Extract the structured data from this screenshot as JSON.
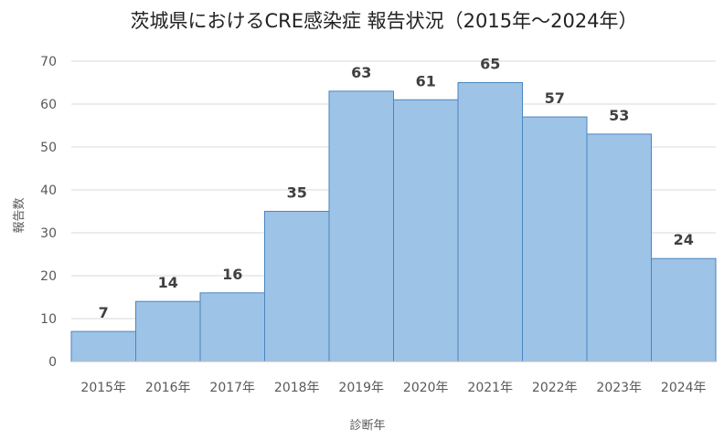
{
  "chart_data": {
    "type": "bar",
    "title": "茨城県におけるCRE感染症 報告状況（2015年～2024年）",
    "xlabel": "診断年",
    "ylabel": "報告数",
    "categories": [
      "2015年",
      "2016年",
      "2017年",
      "2018年",
      "2019年",
      "2020年",
      "2021年",
      "2022年",
      "2023年",
      "2024年"
    ],
    "values": [
      7,
      14,
      16,
      35,
      63,
      61,
      65,
      57,
      53,
      24
    ],
    "ylim": [
      0,
      70
    ],
    "yticks": [
      0,
      10,
      20,
      30,
      40,
      50,
      60,
      70
    ],
    "grid": true,
    "legend": "none",
    "colors": {
      "bar_fill": "#9dc3e6",
      "bar_stroke": "#4a86c0"
    }
  }
}
